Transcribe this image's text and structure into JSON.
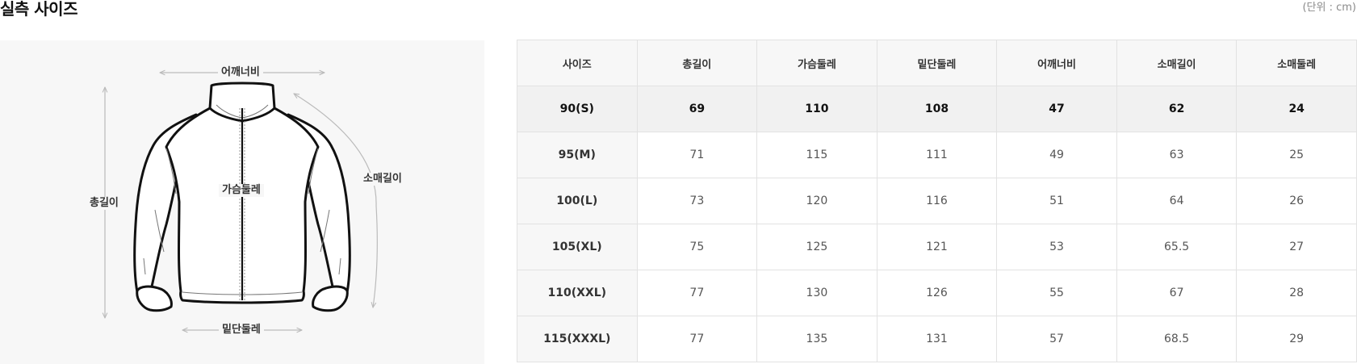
{
  "header": {
    "title": "실측 사이즈",
    "unit": "(단위 : cm)"
  },
  "figure": {
    "labels": {
      "shoulder": "어깨너비",
      "total_length": "총길이",
      "chest": "가슴둘레",
      "sleeve": "소매길이",
      "hem": "밑단둘레"
    }
  },
  "table": {
    "columns": [
      "사이즈",
      "총길이",
      "가슴둘레",
      "밑단둘레",
      "어깨너비",
      "소매길이",
      "소매둘레"
    ],
    "rows": [
      [
        "90(S)",
        "69",
        "110",
        "108",
        "47",
        "62",
        "24"
      ],
      [
        "95(M)",
        "71",
        "115",
        "111",
        "49",
        "63",
        "25"
      ],
      [
        "100(L)",
        "73",
        "120",
        "116",
        "51",
        "64",
        "26"
      ],
      [
        "105(XL)",
        "75",
        "125",
        "121",
        "53",
        "65.5",
        "27"
      ],
      [
        "110(XXL)",
        "77",
        "130",
        "126",
        "55",
        "67",
        "28"
      ],
      [
        "115(XXXL)",
        "77",
        "135",
        "131",
        "57",
        "68.5",
        "29"
      ]
    ],
    "highlight_row": 0
  }
}
